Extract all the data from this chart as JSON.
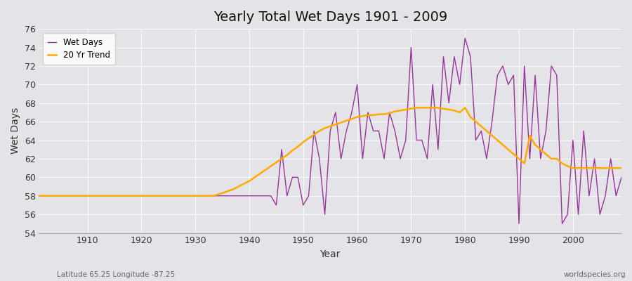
{
  "title": "Yearly Total Wet Days 1901 - 2009",
  "xlabel": "Year",
  "ylabel": "Wet Days",
  "subtitle_left": "Latitude 65.25 Longitude -87.25",
  "subtitle_right": "worldspecies.org",
  "xlim": [
    1901,
    2009
  ],
  "ylim": [
    54,
    76
  ],
  "yticks": [
    54,
    56,
    58,
    60,
    62,
    64,
    66,
    68,
    70,
    72,
    74,
    76
  ],
  "xticks": [
    1910,
    1920,
    1930,
    1940,
    1950,
    1960,
    1970,
    1980,
    1990,
    2000
  ],
  "bg_color": "#e4e4e8",
  "fig_color": "#e4e4e8",
  "wet_days_color": "#993399",
  "trend_color": "#ffaa00",
  "legend_wet": "Wet Days",
  "legend_trend": "20 Yr Trend",
  "years": [
    1901,
    1902,
    1903,
    1904,
    1905,
    1906,
    1907,
    1908,
    1909,
    1910,
    1911,
    1912,
    1913,
    1914,
    1915,
    1916,
    1917,
    1918,
    1919,
    1920,
    1921,
    1922,
    1923,
    1924,
    1925,
    1926,
    1927,
    1928,
    1929,
    1930,
    1931,
    1932,
    1933,
    1934,
    1935,
    1936,
    1937,
    1938,
    1939,
    1940,
    1941,
    1942,
    1943,
    1944,
    1945,
    1946,
    1947,
    1948,
    1949,
    1950,
    1951,
    1952,
    1953,
    1954,
    1955,
    1956,
    1957,
    1958,
    1959,
    1960,
    1961,
    1962,
    1963,
    1964,
    1965,
    1966,
    1967,
    1968,
    1969,
    1970,
    1971,
    1972,
    1973,
    1974,
    1975,
    1976,
    1977,
    1978,
    1979,
    1980,
    1981,
    1982,
    1983,
    1984,
    1985,
    1986,
    1987,
    1988,
    1989,
    1990,
    1991,
    1992,
    1993,
    1994,
    1995,
    1996,
    1997,
    1998,
    1999,
    2000,
    2001,
    2002,
    2003,
    2004,
    2005,
    2006,
    2007,
    2008,
    2009
  ],
  "wet_days": [
    58,
    58,
    58,
    58,
    58,
    58,
    58,
    58,
    58,
    58,
    58,
    58,
    58,
    58,
    58,
    58,
    58,
    58,
    58,
    58,
    58,
    58,
    58,
    58,
    58,
    58,
    58,
    58,
    58,
    58,
    58,
    58,
    58,
    58,
    58,
    58,
    58,
    58,
    58,
    58,
    58,
    58,
    58,
    58,
    57,
    63,
    58,
    60,
    60,
    57,
    58,
    65,
    62,
    56,
    65,
    67,
    62,
    65,
    67,
    70,
    62,
    67,
    65,
    65,
    62,
    67,
    65,
    62,
    64,
    74,
    64,
    64,
    62,
    70,
    63,
    73,
    68,
    73,
    70,
    75,
    73,
    64,
    65,
    62,
    66,
    71,
    72,
    70,
    71,
    55,
    72,
    62,
    71,
    62,
    65,
    72,
    71,
    55,
    56,
    64,
    56,
    65,
    58,
    62,
    56,
    58,
    62,
    58,
    60
  ],
  "trend": [
    58.0,
    58.0,
    58.0,
    58.0,
    58.0,
    58.0,
    58.0,
    58.0,
    58.0,
    58.0,
    58.0,
    58.0,
    58.0,
    58.0,
    58.0,
    58.0,
    58.0,
    58.0,
    58.0,
    58.0,
    58.0,
    58.0,
    58.0,
    58.0,
    58.0,
    58.0,
    58.0,
    58.0,
    58.0,
    58.0,
    58.0,
    58.0,
    58.0,
    58.1,
    58.3,
    58.5,
    58.7,
    59.0,
    59.3,
    59.6,
    60.0,
    60.4,
    60.8,
    61.2,
    61.6,
    62.0,
    62.4,
    62.9,
    63.3,
    63.8,
    64.2,
    64.6,
    65.0,
    65.3,
    65.5,
    65.7,
    65.9,
    66.1,
    66.3,
    66.5,
    66.6,
    66.7,
    66.7,
    66.8,
    66.8,
    66.9,
    67.1,
    67.2,
    67.3,
    67.4,
    67.5,
    67.5,
    67.5,
    67.5,
    67.5,
    67.4,
    67.3,
    67.2,
    67.0,
    67.5,
    66.5,
    66.0,
    65.5,
    65.0,
    64.5,
    64.0,
    63.5,
    63.0,
    62.5,
    62.0,
    61.5,
    64.5,
    63.5,
    63.0,
    62.5,
    62.0,
    62.0,
    61.5,
    61.2,
    61.0,
    61.0,
    61.0,
    61.0,
    61.0,
    61.0,
    61.0,
    61.0,
    61.0,
    61.0
  ]
}
